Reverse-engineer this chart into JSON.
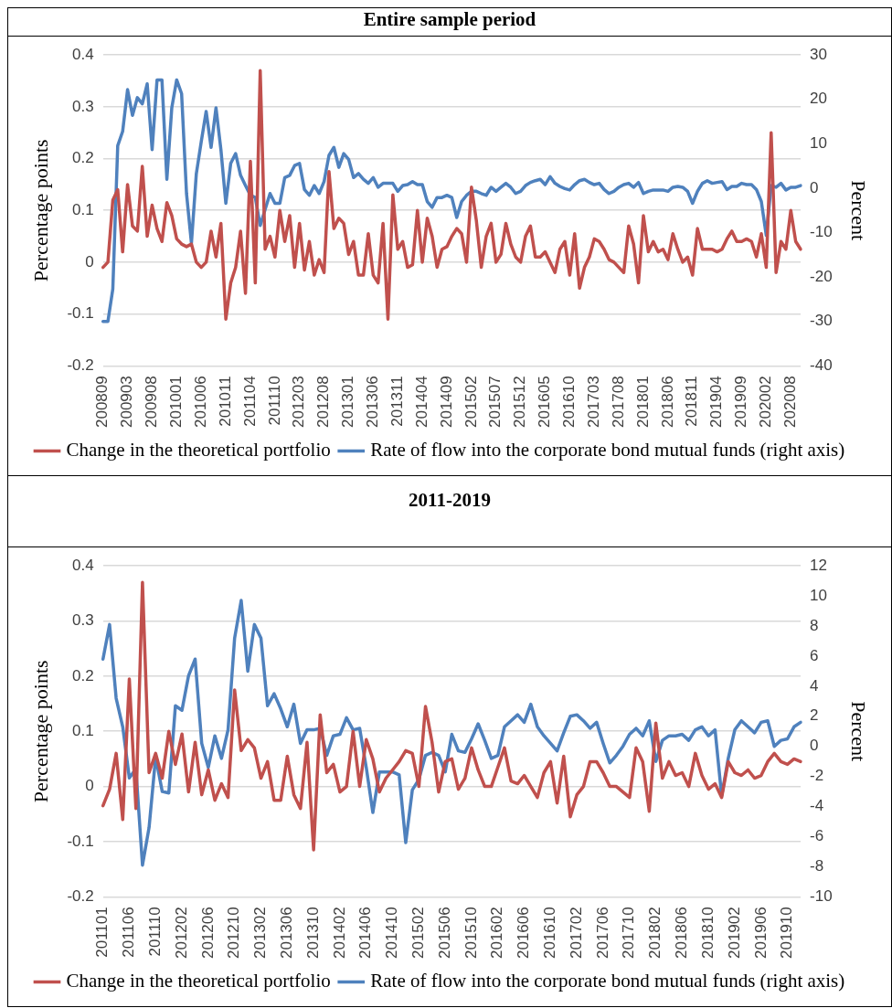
{
  "chart_data": [
    {
      "type": "line",
      "title": "Entire sample period",
      "ylabel": "Percentage points",
      "y2label": "Percent",
      "categories": [
        "200809",
        null,
        null,
        null,
        null,
        "200903",
        null,
        null,
        null,
        null,
        "200908",
        null,
        null,
        null,
        null,
        "201001",
        null,
        null,
        null,
        null,
        "201006",
        null,
        null,
        null,
        null,
        "201011",
        null,
        null,
        null,
        null,
        "201104",
        null,
        null,
        null,
        null,
        "201110",
        null,
        null,
        null,
        null,
        "201203",
        null,
        null,
        null,
        null,
        "201208",
        null,
        null,
        null,
        null,
        "201301",
        null,
        null,
        null,
        null,
        "201306",
        null,
        null,
        null,
        null,
        "201311",
        null,
        null,
        null,
        null,
        "201404",
        null,
        null,
        null,
        null,
        "201409",
        null,
        null,
        null,
        null,
        "201502",
        null,
        null,
        null,
        null,
        "201507",
        null,
        null,
        null,
        null,
        "201512",
        null,
        null,
        null,
        null,
        "201605",
        null,
        null,
        null,
        null,
        "201610",
        null,
        null,
        null,
        null,
        "201703",
        null,
        null,
        null,
        null,
        "201708",
        null,
        null,
        null,
        null,
        "201801",
        null,
        null,
        null,
        null,
        "201806",
        null,
        null,
        null,
        null,
        "201811",
        null,
        null,
        null,
        null,
        "201904",
        null,
        null,
        null,
        null,
        "201909",
        null,
        null,
        null,
        null,
        "202002",
        null,
        null,
        null,
        null,
        "202008",
        null,
        null
      ],
      "series": [
        {
          "name": "Change in the theoretical portfolio",
          "color": "#c0504d",
          "values": [
            -0.01,
            0.0,
            0.12,
            0.14,
            0.02,
            0.15,
            0.07,
            0.06,
            0.185,
            0.05,
            0.11,
            0.065,
            0.04,
            0.115,
            0.09,
            0.045,
            0.035,
            0.03,
            0.035,
            0.0,
            -0.01,
            0.0,
            0.06,
            0.01,
            0.075,
            -0.11,
            -0.04,
            -0.01,
            0.06,
            -0.06,
            0.195,
            -0.04,
            0.37,
            0.025,
            0.05,
            0.01,
            0.1,
            0.04,
            0.09,
            -0.01,
            0.075,
            -0.015,
            0.04,
            -0.025,
            0.005,
            -0.02,
            0.175,
            0.065,
            0.085,
            0.075,
            0.015,
            0.04,
            -0.025,
            -0.025,
            0.055,
            -0.025,
            -0.04,
            0.075,
            -0.11,
            0.13,
            0.025,
            0.04,
            -0.01,
            -0.005,
            0.1,
            0.0,
            0.085,
            0.05,
            -0.01,
            0.025,
            0.03,
            0.05,
            0.065,
            0.055,
            0.0,
            0.145,
            0.08,
            -0.01,
            0.05,
            0.075,
            0.0,
            0.015,
            0.075,
            0.035,
            0.01,
            0.0,
            0.05,
            0.07,
            0.01,
            0.01,
            0.02,
            0.0,
            -0.02,
            0.025,
            0.04,
            -0.025,
            0.055,
            -0.05,
            -0.01,
            0.01,
            0.045,
            0.04,
            0.025,
            0.005,
            0.0,
            -0.01,
            -0.02,
            0.07,
            0.035,
            -0.04,
            0.09,
            0.02,
            0.04,
            0.02,
            0.025,
            0.005,
            0.055,
            0.025,
            0.0,
            0.01,
            -0.025,
            0.065,
            0.025,
            0.025,
            0.025,
            0.02,
            0.025,
            0.045,
            0.06,
            0.04,
            0.04,
            0.045,
            0.04,
            0.01,
            0.055,
            -0.01,
            0.25,
            -0.02,
            0.04,
            0.025,
            0.1,
            0.04,
            0.025
          ]
        },
        {
          "name": "Rate of flow into the corporate bond mutual funds (right axis)",
          "color": "#4f81bd",
          "axis": "y2",
          "values": [
            -30,
            -30,
            -22.7,
            9.6,
            12.8,
            22.2,
            16.4,
            20.4,
            19,
            23.5,
            8.7,
            24.4,
            24.4,
            2,
            18.1,
            24.4,
            21.3,
            -1.2,
            -12.4,
            3.3,
            10.5,
            17.3,
            9.2,
            18.1,
            8.7,
            -3.4,
            5.6,
            7.8,
            2.9,
            0.6,
            -1.6,
            -2.1,
            -8.4,
            -4.8,
            -1.2,
            -3.4,
            -3.4,
            2.4,
            2.9,
            5.1,
            5.6,
            -0.3,
            -1.6,
            0.6,
            -1.2,
            1.5,
            7.4,
            9.2,
            4.7,
            7.8,
            6.5,
            2.4,
            3.3,
            2,
            1.1,
            2.4,
            0.2,
            1.1,
            1.1,
            1.1,
            -0.7,
            0.6,
            0.8,
            1.5,
            0.8,
            0.8,
            -3,
            -4.3,
            -2.1,
            -2.1,
            -1.6,
            -2.1,
            -6.6,
            -3,
            -1.6,
            -0.7,
            -0.7,
            -1.2,
            -1.6,
            0.2,
            -0.7,
            0.2,
            1.1,
            0.2,
            -1.2,
            -0.7,
            0.6,
            1.3,
            1.7,
            2,
            0.8,
            2.6,
            1.1,
            0.4,
            -0.1,
            -0.4,
            0.8,
            1.7,
            2,
            1.3,
            0.8,
            1.1,
            -0.3,
            -1.2,
            -0.7,
            0.2,
            0.8,
            1.1,
            0.2,
            1.3,
            -1.2,
            -0.7,
            -0.4,
            -0.4,
            -0.4,
            -0.7,
            0.2,
            0.4,
            0.2,
            -0.7,
            -3.4,
            -0.7,
            1.1,
            1.7,
            1.1,
            1.3,
            1.5,
            -0.3,
            0.4,
            0.4,
            1.1,
            0.8,
            0.8,
            -0.3,
            -3,
            -10.6,
            0.6,
            0.2,
            1.1,
            -0.4,
            0.2,
            0.2,
            0.6
          ]
        }
      ],
      "ylim": [
        -0.2,
        0.4
      ],
      "yticks": [
        -0.2,
        -0.1,
        0,
        0.1,
        0.2,
        0.3,
        0.4
      ],
      "y2lim": [
        -40,
        30
      ],
      "y2ticks": [
        -40,
        -30,
        -20,
        -10,
        0,
        10,
        20,
        30
      ],
      "grid": "y",
      "legend": "bottom"
    },
    {
      "type": "line",
      "title": "2011-2019",
      "ylabel": "Percentage points",
      "y2label": "Percent",
      "categories": [
        "201101",
        null,
        null,
        null,
        "201106",
        null,
        null,
        null,
        "201110",
        null,
        null,
        null,
        "201202",
        null,
        null,
        null,
        "201206",
        null,
        null,
        null,
        "201210",
        null,
        null,
        null,
        "201302",
        null,
        null,
        null,
        "201306",
        null,
        null,
        null,
        "201310",
        null,
        null,
        null,
        "201402",
        null,
        null,
        null,
        "201406",
        null,
        null,
        null,
        "201410",
        null,
        null,
        null,
        "201502",
        null,
        null,
        null,
        "201506",
        null,
        null,
        null,
        "201510",
        null,
        null,
        null,
        "201602",
        null,
        null,
        null,
        "201606",
        null,
        null,
        null,
        "201610",
        null,
        null,
        null,
        "201702",
        null,
        null,
        null,
        "201706",
        null,
        null,
        null,
        "201710",
        null,
        null,
        null,
        "201802",
        null,
        null,
        null,
        "201806",
        null,
        null,
        null,
        "201810",
        null,
        null,
        null,
        "201902",
        null,
        null,
        null,
        "201906",
        null,
        null,
        null,
        "201910",
        null,
        null
      ],
      "series": [
        {
          "name": "Change in the theoretical portfolio",
          "color": "#c0504d",
          "values": [
            -0.035,
            -0.005,
            0.06,
            -0.06,
            0.195,
            -0.04,
            0.37,
            0.025,
            0.06,
            0.015,
            0.1,
            0.04,
            0.095,
            -0.01,
            0.08,
            -0.015,
            0.03,
            -0.025,
            0.005,
            -0.02,
            0.175,
            0.065,
            0.085,
            0.07,
            0.015,
            0.045,
            -0.025,
            -0.025,
            0.055,
            -0.015,
            -0.04,
            0.08,
            -0.115,
            0.13,
            0.025,
            0.04,
            -0.01,
            0.0,
            0.1,
            0.0,
            0.085,
            0.05,
            -0.01,
            0.015,
            0.03,
            0.045,
            0.065,
            0.06,
            0.0,
            0.145,
            0.08,
            -0.01,
            0.045,
            0.05,
            -0.005,
            0.015,
            0.07,
            0.03,
            0.0,
            0.0,
            0.035,
            0.07,
            0.01,
            0.005,
            0.02,
            0.0,
            -0.02,
            0.025,
            0.045,
            -0.03,
            0.055,
            -0.055,
            -0.015,
            0.0,
            0.045,
            0.045,
            0.025,
            0.0,
            0.0,
            -0.01,
            -0.02,
            0.07,
            0.045,
            -0.045,
            0.115,
            0.015,
            0.045,
            0.02,
            0.025,
            0.0,
            0.06,
            0.02,
            -0.005,
            0.005,
            -0.02,
            0.045,
            0.025,
            0.02,
            0.03,
            0.015,
            0.02,
            0.045,
            0.06,
            0.045,
            0.04,
            0.05,
            0.045
          ]
        },
        {
          "name": "Rate of flow into the corporate bond mutual funds (right axis)",
          "color": "#4f81bd",
          "axis": "y2",
          "values": [
            5.8,
            8.1,
            3.2,
            1.3,
            -2.1,
            -1.5,
            -7.9,
            -5.4,
            -0.7,
            -3,
            -3.1,
            2.7,
            2.4,
            4.7,
            5.8,
            0.2,
            -1.4,
            0.7,
            -0.8,
            1.1,
            7.2,
            9.7,
            5,
            8.1,
            7.2,
            2.7,
            3.5,
            2.5,
            1.3,
            2.8,
            0.2,
            1.1,
            1.1,
            1.2,
            -0.6,
            0.7,
            0.8,
            1.9,
            1.1,
            1.2,
            -1.4,
            -4.4,
            -1.7,
            -1.7,
            -1.7,
            -1.9,
            -6.4,
            -2.9,
            -2.2,
            -0.6,
            -0.4,
            -0.6,
            -1.7,
            0.8,
            -0.3,
            -0.4,
            0.5,
            1.5,
            0.4,
            -0.8,
            -0.6,
            1.3,
            1.7,
            2.1,
            1.6,
            2.8,
            1.3,
            0.7,
            0.2,
            -0.3,
            0.9,
            2,
            2.1,
            1.7,
            1.2,
            1.6,
            0.2,
            -1.1,
            -0.6,
            0,
            0.8,
            1.2,
            0.7,
            1.7,
            -1,
            0.4,
            0.7,
            0.7,
            0.8,
            0.4,
            1.1,
            1.3,
            0.7,
            1.1,
            -3.3,
            -0.8,
            1.1,
            1.7,
            1.3,
            0.9,
            1.6,
            1.7,
            0,
            0.4,
            0.5,
            1.3,
            1.6
          ]
        }
      ],
      "ylim": [
        -0.2,
        0.4
      ],
      "yticks": [
        -0.2,
        -0.1,
        0,
        0.1,
        0.2,
        0.3,
        0.4
      ],
      "y2lim": [
        -10,
        12
      ],
      "y2ticks": [
        -10,
        -8,
        -6,
        -4,
        -2,
        0,
        2,
        4,
        6,
        8,
        10,
        12
      ],
      "grid": "y",
      "legend": "bottom"
    }
  ]
}
